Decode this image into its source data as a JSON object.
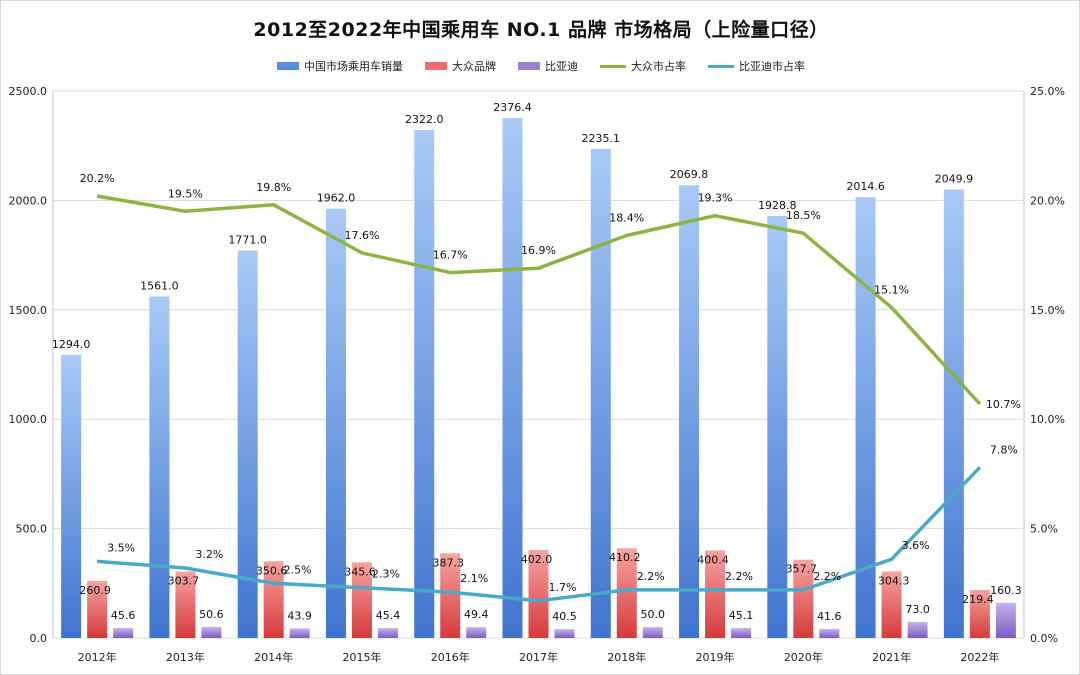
{
  "chart_data": {
    "type": "bar",
    "title": "2012至2022年中国乘用车 NO.1 品牌 市场格局（上险量口径）",
    "categories": [
      "2012年",
      "2013年",
      "2014年",
      "2015年",
      "2016年",
      "2017年",
      "2018年",
      "2019年",
      "2020年",
      "2021年",
      "2022年"
    ],
    "series": [
      {
        "name": "中国市场乘用车销量",
        "kind": "bar",
        "axis": "left",
        "color": "#5b8fdc",
        "values": [
          1294.0,
          1561.0,
          1771.0,
          1962.0,
          2322.0,
          2376.4,
          2235.1,
          2069.8,
          1928.8,
          2014.6,
          2049.9
        ]
      },
      {
        "name": "大众品牌",
        "kind": "bar",
        "axis": "left",
        "color": "#ee6b6b",
        "values": [
          260.9,
          303.7,
          350.6,
          345.6,
          387.3,
          402.0,
          410.2,
          400.4,
          357.7,
          304.3,
          219.4
        ]
      },
      {
        "name": "比亚迪",
        "kind": "bar",
        "axis": "left",
        "color": "#9c80d0",
        "values": [
          45.6,
          50.6,
          43.9,
          45.4,
          49.4,
          40.5,
          50.0,
          45.1,
          41.6,
          73.0,
          160.3
        ]
      },
      {
        "name": "大众市占率",
        "kind": "line",
        "axis": "right",
        "color": "#8cb443",
        "values": [
          20.2,
          19.5,
          19.8,
          17.6,
          16.7,
          16.9,
          18.4,
          19.3,
          18.5,
          15.1,
          10.7
        ]
      },
      {
        "name": "比亚迪市占率",
        "kind": "line",
        "axis": "right",
        "color": "#4aa8c8",
        "values": [
          3.5,
          3.2,
          2.5,
          2.3,
          2.1,
          1.7,
          2.2,
          2.2,
          2.2,
          3.6,
          7.8
        ]
      }
    ],
    "left_axis": {
      "min": 0,
      "max": 2500,
      "step": 500,
      "ticks": [
        "0.0",
        "500.0",
        "1000.0",
        "1500.0",
        "2000.0",
        "2500.0"
      ]
    },
    "right_axis": {
      "min": 0,
      "max": 25,
      "step": 5,
      "ticks": [
        "0.0%",
        "5.0%",
        "10.0%",
        "15.0%",
        "20.0%",
        "25.0%"
      ]
    },
    "value_labels": {
      "中国市场乘用车销量": [
        "1294.0",
        "1561.0",
        "1771.0",
        "1962.0",
        "2322.0",
        "2376.4",
        "2235.1",
        "2069.8",
        "1928.8",
        "2014.6",
        "2049.9"
      ],
      "大众品牌": [
        "260.9",
        "303.7",
        "350.6",
        "345.6",
        "387.3",
        "402.0",
        "410.2",
        "400.4",
        "357.7",
        "304.3",
        "219.4"
      ],
      "比亚迪": [
        "45.6",
        "50.6",
        "43.9",
        "45.4",
        "49.4",
        "40.5",
        "50.0",
        "45.1",
        "41.6",
        "73.0",
        "160.3"
      ],
      "大众市占率": [
        "20.2%",
        "19.5%",
        "19.8%",
        "17.6%",
        "16.7%",
        "16.9%",
        "18.4%",
        "19.3%",
        "18.5%",
        "15.1%",
        "10.7%"
      ],
      "比亚迪市占率": [
        "3.5%",
        "3.2%",
        "2.5%",
        "2.3%",
        "2.1%",
        "1.7%",
        "2.2%",
        "2.2%",
        "2.2%",
        "3.6%",
        "7.8%"
      ]
    },
    "legend_position": "top-center",
    "grid": "horizontal"
  }
}
